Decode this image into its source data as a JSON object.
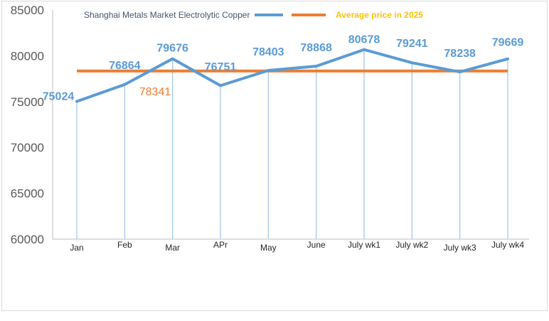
{
  "chart_data": {
    "type": "line",
    "categories": [
      "Jan",
      "Feb",
      "Mar",
      "APr",
      "May",
      "June",
      "July wk1",
      "July wk2",
      "July wk3",
      "July wk4"
    ],
    "series": [
      {
        "name": "Shanghai Metals Market Electrolytic Copper",
        "values": [
          75024,
          76864,
          79676,
          76751,
          78403,
          78868,
          80678,
          79241,
          78238,
          79669
        ],
        "color": "#5b9bd5",
        "data_labels": [
          "75024",
          "76864",
          "79676",
          "76751",
          "78403",
          "78868",
          "80678",
          "79241",
          "78238",
          "79669"
        ]
      },
      {
        "name": "Average price in 2025",
        "values": [
          78341,
          78341,
          78341,
          78341,
          78341,
          78341,
          78341,
          78341,
          78341,
          78341
        ],
        "color": "#ed7d31",
        "data_label": "78341"
      }
    ],
    "yticks": [
      "60000",
      "65000",
      "70000",
      "75000",
      "80000",
      "85000"
    ],
    "ylim": [
      60000,
      85000
    ],
    "title": "",
    "xlabel": "",
    "ylabel": "",
    "legend_position": "top",
    "grid": false,
    "drop_lines": true
  }
}
